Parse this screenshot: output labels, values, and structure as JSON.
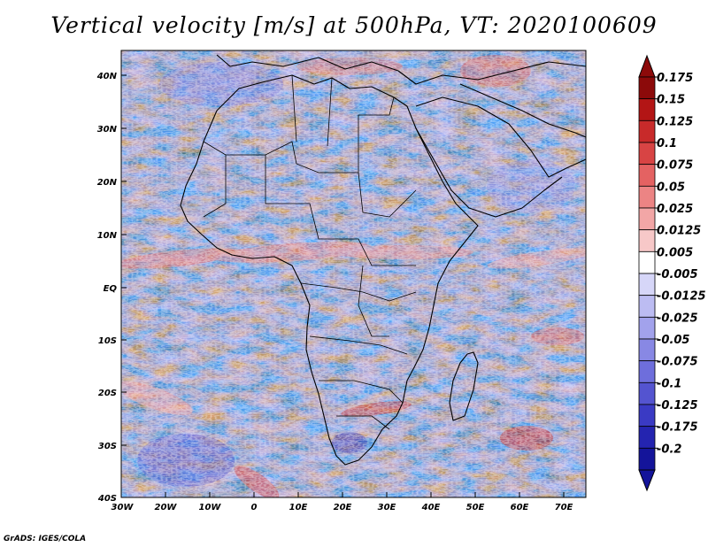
{
  "title": "Vertical velocity [m/s] at 500hPa, VT: 2020100609",
  "credit": "GrADS: IGES/COLA",
  "lat_labels": [
    "40N",
    "30N",
    "20N",
    "10N",
    "EQ",
    "10S",
    "20S",
    "30S",
    "40S"
  ],
  "lon_labels": [
    "30W",
    "20W",
    "10W",
    "0",
    "10E",
    "20E",
    "30E",
    "40E",
    "50E",
    "60E",
    "70E"
  ],
  "colorbar": {
    "labels": [
      "0.175",
      "0.15",
      "0.125",
      "0.1",
      "0.075",
      "0.05",
      "0.025",
      "0.0125",
      "0.005",
      "-0.005",
      "-0.0125",
      "-0.025",
      "-0.05",
      "-0.075",
      "-0.1",
      "-0.125",
      "-0.175",
      "-0.2"
    ],
    "colors": [
      "#8c0a0a",
      "#b31515",
      "#c82a2a",
      "#d84444",
      "#e46262",
      "#ec8484",
      "#f2a6a6",
      "#f7c8c8",
      "#ffffff",
      "#d6d6f8",
      "#bcbcf2",
      "#a2a2ec",
      "#8888e4",
      "#6e6edc",
      "#5454d0",
      "#3a3ac4",
      "#2424b0",
      "#14149a"
    ]
  },
  "colors": {
    "field_base": "#a8a8ec",
    "coast": "#000000"
  }
}
